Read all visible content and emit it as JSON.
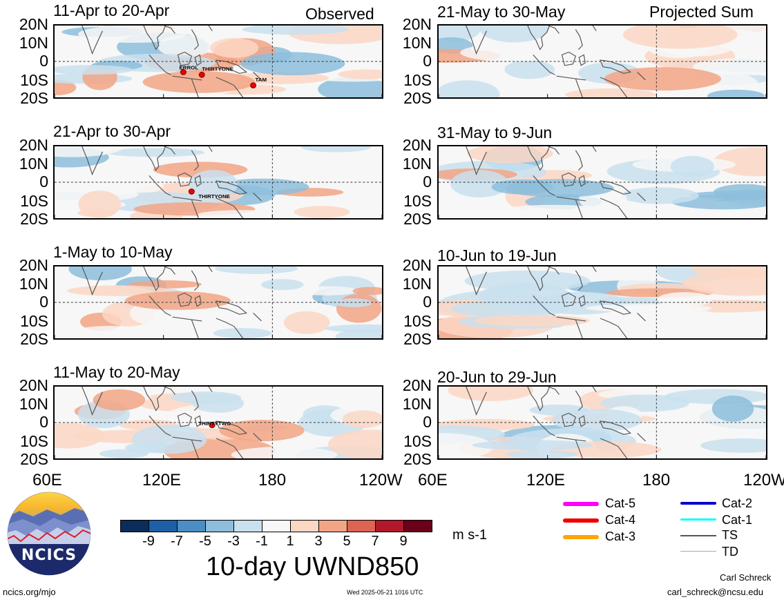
{
  "header": {
    "observed": "Observed",
    "projected": "Projected Sum"
  },
  "panels": [
    {
      "title": "11-Apr to 20-Apr",
      "storms": [
        {
          "name": "ERROL"
        },
        {
          "name": "THIRTYONE"
        },
        {
          "name": "TAM"
        }
      ]
    },
    {
      "title": "21-Apr to 30-Apr",
      "storms": [
        {
          "name": "THIRTYONE"
        }
      ]
    },
    {
      "title": "1-May to 10-May",
      "storms": []
    },
    {
      "title": "11-May to 20-May",
      "storms": [
        {
          "name": "THIRTYTWO"
        }
      ]
    },
    {
      "title": "21-May to 30-May",
      "storms": []
    },
    {
      "title": "31-May to 9-Jun",
      "storms": []
    },
    {
      "title": "10-Jun to 19-Jun",
      "storms": []
    },
    {
      "title": "20-Jun to 29-Jun",
      "storms": []
    }
  ],
  "lat_labels": [
    "20N",
    "10N",
    "0",
    "10S",
    "20S"
  ],
  "lon_labels_left": [
    "60E",
    "120E",
    "180",
    "120W"
  ],
  "lon_labels_right": [
    "60E",
    "120E",
    "180",
    "120W"
  ],
  "colorbar": {
    "title": "10-day UWND850",
    "units": "m s-1",
    "ticks": [
      "-9",
      "-7",
      "-5",
      "-3",
      "-1",
      "1",
      "3",
      "5",
      "7",
      "9"
    ],
    "colors": [
      "#0b2d5b",
      "#1f5fa8",
      "#4a8ec4",
      "#8dbedc",
      "#c9e0ee",
      "#f7f7f7",
      "#fbd7c4",
      "#f2a585",
      "#dc6453",
      "#b2182b",
      "#6b0019"
    ]
  },
  "legend": {
    "items": [
      {
        "label": "Cat-5",
        "color": "#ff00ff"
      },
      {
        "label": "Cat-4",
        "color": "#ee0000"
      },
      {
        "label": "Cat-3",
        "color": "#ffa500"
      },
      {
        "label": "Cat-2",
        "color": "#0000cc"
      },
      {
        "label": "Cat-1",
        "color": "#00ffff"
      },
      {
        "label": "TS",
        "color": "#555555"
      },
      {
        "label": "TD",
        "color": "#aaaaaa"
      }
    ]
  },
  "logo": {
    "text": "NCICS"
  },
  "footer": {
    "url": "ncics.org/mjo",
    "timestamp": "Wed 2025-05-21 1016 UTC",
    "author": "Carl Schreck",
    "email": "carl_schreck@ncsu.edu"
  }
}
